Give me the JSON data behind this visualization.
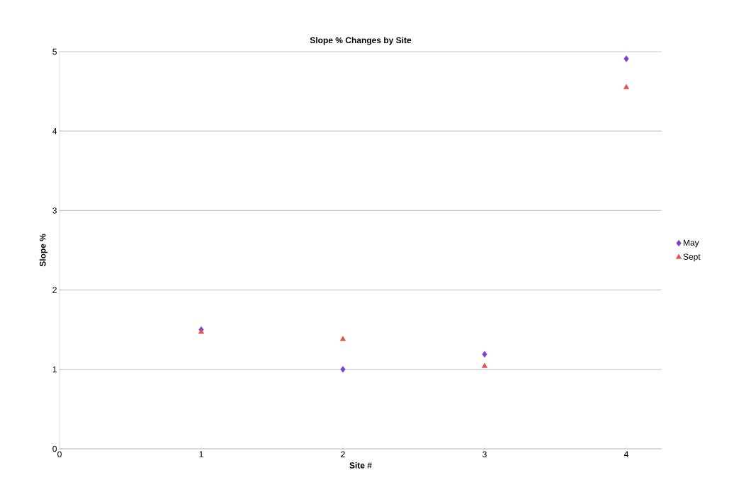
{
  "chart_data": {
    "type": "scatter",
    "title": "Slope % Changes by Site",
    "xlabel": "Site #",
    "ylabel": "Slope %",
    "x": [
      1,
      2,
      3,
      4
    ],
    "series": [
      {
        "name": "May",
        "color": "#7b3fd6",
        "marker": "diamond",
        "values": [
          1.5,
          1.0,
          1.19,
          4.91
        ]
      },
      {
        "name": "Sept",
        "color": "#e0534a",
        "marker": "triangle",
        "values": [
          1.47,
          1.38,
          1.04,
          4.55
        ]
      }
    ],
    "xlim": [
      0,
      4.25
    ],
    "xticks": [
      0,
      1,
      2,
      3,
      4
    ],
    "ylim": [
      0,
      5
    ],
    "yticks": [
      0,
      1,
      2,
      3,
      4,
      5
    ],
    "grid": "y",
    "legend": "right"
  }
}
